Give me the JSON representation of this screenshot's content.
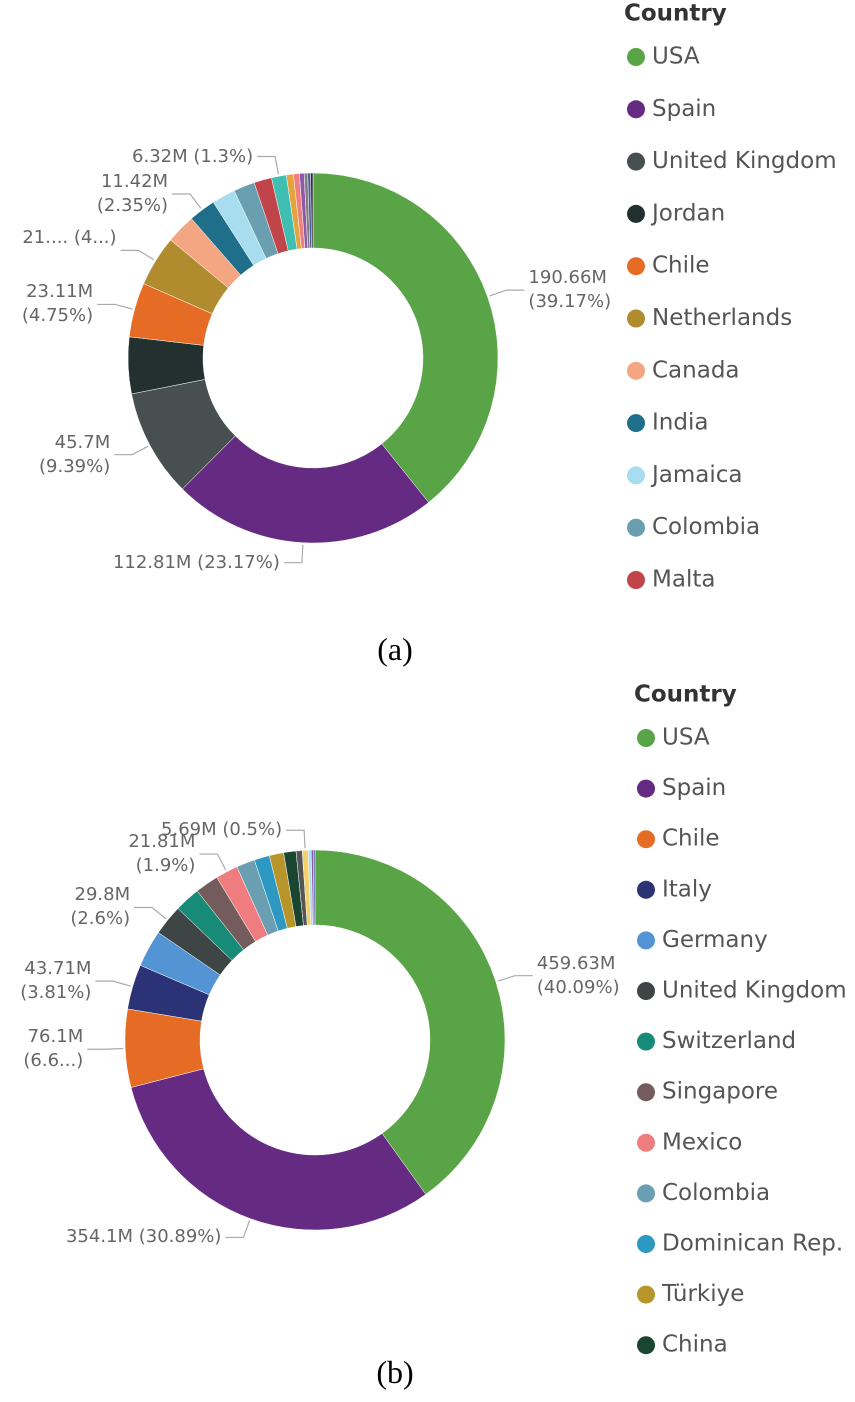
{
  "chart_data": [
    {
      "type": "donut",
      "legend_title": "Country",
      "caption": "(a)",
      "categories": [
        "USA",
        "Spain",
        "United Kingdom",
        "Jordan",
        "Chile",
        "Netherlands",
        "Canada",
        "India",
        "Jamaica",
        "Colombia",
        "Malta",
        null,
        null,
        null,
        null,
        null,
        null,
        null
      ],
      "values": [
        190.66,
        112.81,
        45.7,
        24,
        23.11,
        21.5,
        12.5,
        11.42,
        10,
        9,
        7.5,
        6.32,
        3,
        2.5,
        2,
        1.5,
        1.2,
        1
      ],
      "value_labels": [
        "190.66M (39.17%)",
        "112.81M (23.17%)",
        "45.7M (9.39%)",
        null,
        "23.11M (4.75%)",
        "21.... (4...)",
        null,
        "11.42M (2.35%)",
        null,
        null,
        null,
        "6.32M (1.3%)",
        null,
        null,
        null,
        null,
        null,
        null
      ],
      "colors": [
        "#58a446",
        "#652a82",
        "#474f50",
        "#22302f",
        "#e66c25",
        "#b08c2e",
        "#f4a582",
        "#1f6e8a",
        "#a8ddef",
        "#6a9fb1",
        "#c0444a",
        "#3fbfb2",
        "#e6a23c",
        "#f08080",
        "#8e5aa8",
        "#7f7f7f",
        "#4a5a9a",
        "#333333"
      ]
    },
    {
      "type": "donut",
      "legend_title": "Country",
      "caption": "(b)",
      "categories": [
        "USA",
        "Spain",
        "Chile",
        "Italy",
        "Germany",
        "United Kingdom",
        "Switzerland",
        "Singapore",
        "Mexico",
        "Colombia",
        "Dominican Rep.",
        "Türkiye",
        "China",
        null,
        null,
        null,
        null,
        null
      ],
      "values": [
        459.63,
        354.1,
        76.1,
        43.71,
        36,
        29.8,
        25,
        23,
        21.81,
        18,
        15,
        14,
        12,
        6,
        5.69,
        3,
        2,
        1.6
      ],
      "value_labels": [
        "459.63M (40.09%)",
        "354.1M (30.89%)",
        "76.1M (6.6...)",
        "43.71M (3.81%)",
        null,
        "29.8M (2.6%)",
        null,
        null,
        "21.81M (1.9%)",
        null,
        null,
        null,
        null,
        null,
        "5.69M (0.5%)",
        null,
        null,
        null
      ],
      "colors": [
        "#58a446",
        "#652a82",
        "#e66c25",
        "#2b3275",
        "#5394d4",
        "#3e4545",
        "#178a78",
        "#755c5c",
        "#ef7d7f",
        "#6a9fb1",
        "#2d99c3",
        "#b8952a",
        "#1a4530",
        "#555555",
        "#f2d16b",
        "#a8ddef",
        "#8e5aa8",
        "#4a5a9a"
      ]
    }
  ]
}
